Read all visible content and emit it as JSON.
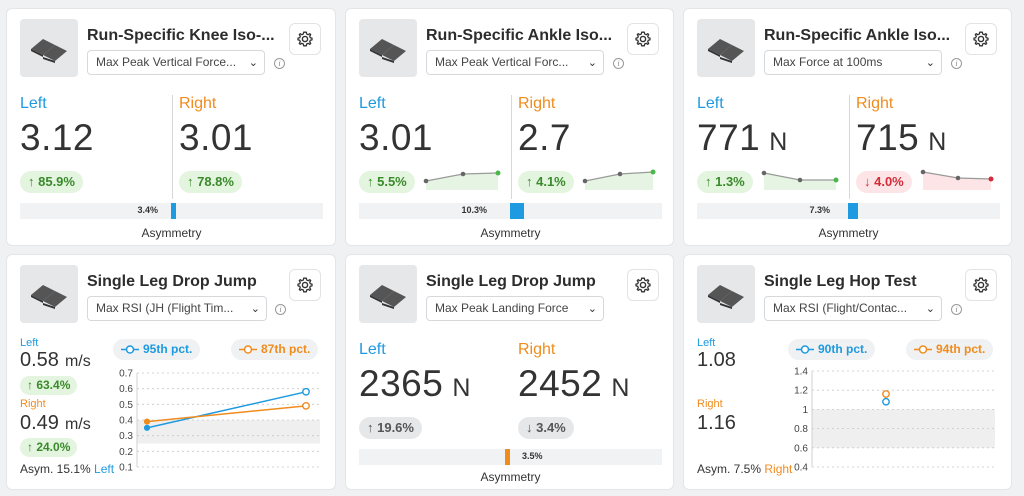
{
  "colors": {
    "left": "#1e9ae0",
    "right": "#f08c1e",
    "up": "#3a8a2b",
    "down": "#d42c39"
  },
  "cards": [
    {
      "title": "Run-Specific Knee Iso-...",
      "metric": "Max Peak Vertical Force...",
      "left_label": "Left",
      "right_label": "Right",
      "left_value": "3.12",
      "right_value": "3.01",
      "left_change": "↑ 85.9%",
      "right_change": "↑ 78.8%",
      "asym": "3.4%",
      "asym_value": 3.4,
      "asym_side": "left",
      "asym_label": "Asymmetry"
    },
    {
      "title": "Run-Specific Ankle Iso...",
      "metric": "Max Peak Vertical Forc...",
      "left_label": "Left",
      "right_label": "Right",
      "left_value": "3.01",
      "right_value": "2.7",
      "left_change": "↑ 5.5%",
      "right_change": "↑ 4.1%",
      "asym": "10.3%",
      "asym_value": 10.3,
      "asym_side": "left",
      "asym_label": "Asymmetry"
    },
    {
      "title": "Run-Specific Ankle Iso...",
      "metric": "Max Force at 100ms",
      "left_label": "Left",
      "right_label": "Right",
      "left_value": "771",
      "left_unit": "N",
      "right_value": "715",
      "right_unit": "N",
      "left_change": "↑ 1.3%",
      "right_change": "↓ 4.0%",
      "asym": "7.3%",
      "asym_value": 7.3,
      "asym_side": "left",
      "asym_label": "Asymmetry"
    },
    {
      "title": "Single Leg Drop Jump",
      "metric": "Max RSI (JH (Flight Tim...",
      "left_label": "Left",
      "left_value": "0.58",
      "left_unit": "m/s",
      "left_change": "↑ 63.4%",
      "right_label": "Right",
      "right_value": "0.49",
      "right_unit": "m/s",
      "right_change": "↑ 24.0%",
      "left_pct": "95th pct.",
      "right_pct": "87th pct.",
      "asym_text": "Asym. 15.1%",
      "asym_side_text": "Left"
    },
    {
      "title": "Single Leg Drop Jump",
      "metric": "Max Peak Landing Force",
      "left_label": "Left",
      "right_label": "Right",
      "left_value": "2365",
      "left_unit": "N",
      "right_value": "2452",
      "right_unit": "N",
      "left_change": "↑ 19.6%",
      "right_change": "↓ 3.4%",
      "asym": "3.5%",
      "asym_value": 3.5,
      "asym_side": "right",
      "asym_label": "Asymmetry"
    },
    {
      "title": "Single Leg Hop Test",
      "metric": "Max RSI (Flight/Contac...",
      "left_label": "Left",
      "left_value": "1.08",
      "right_label": "Right",
      "right_value": "1.16",
      "left_pct": "90th pct.",
      "right_pct": "94th pct.",
      "asym_text": "Asym. 7.5%",
      "asym_side_text": "Right"
    }
  ],
  "chart_data": [
    {
      "type": "line",
      "title": "Single Leg Drop Jump - Max RSI",
      "yticks": [
        "0.7",
        "0.6",
        "0.5",
        "0.4",
        "0.3",
        "0.2",
        "0.1"
      ],
      "ylim": [
        0.1,
        0.7
      ],
      "series": [
        {
          "name": "Left",
          "values": [
            0.35,
            0.58
          ]
        },
        {
          "name": "Right",
          "values": [
            0.39,
            0.49
          ]
        }
      ],
      "band": [
        0.25,
        0.4
      ]
    },
    {
      "type": "scatter",
      "title": "Single Leg Hop Test - Max RSI",
      "yticks": [
        "1.4",
        "1.2",
        "1",
        "0.8",
        "0.6",
        "0.4"
      ],
      "ylim": [
        0.4,
        1.4
      ],
      "series": [
        {
          "name": "Left",
          "values": [
            1.08
          ]
        },
        {
          "name": "Right",
          "values": [
            1.16
          ]
        }
      ],
      "band": [
        0.6,
        1.0
      ]
    }
  ]
}
